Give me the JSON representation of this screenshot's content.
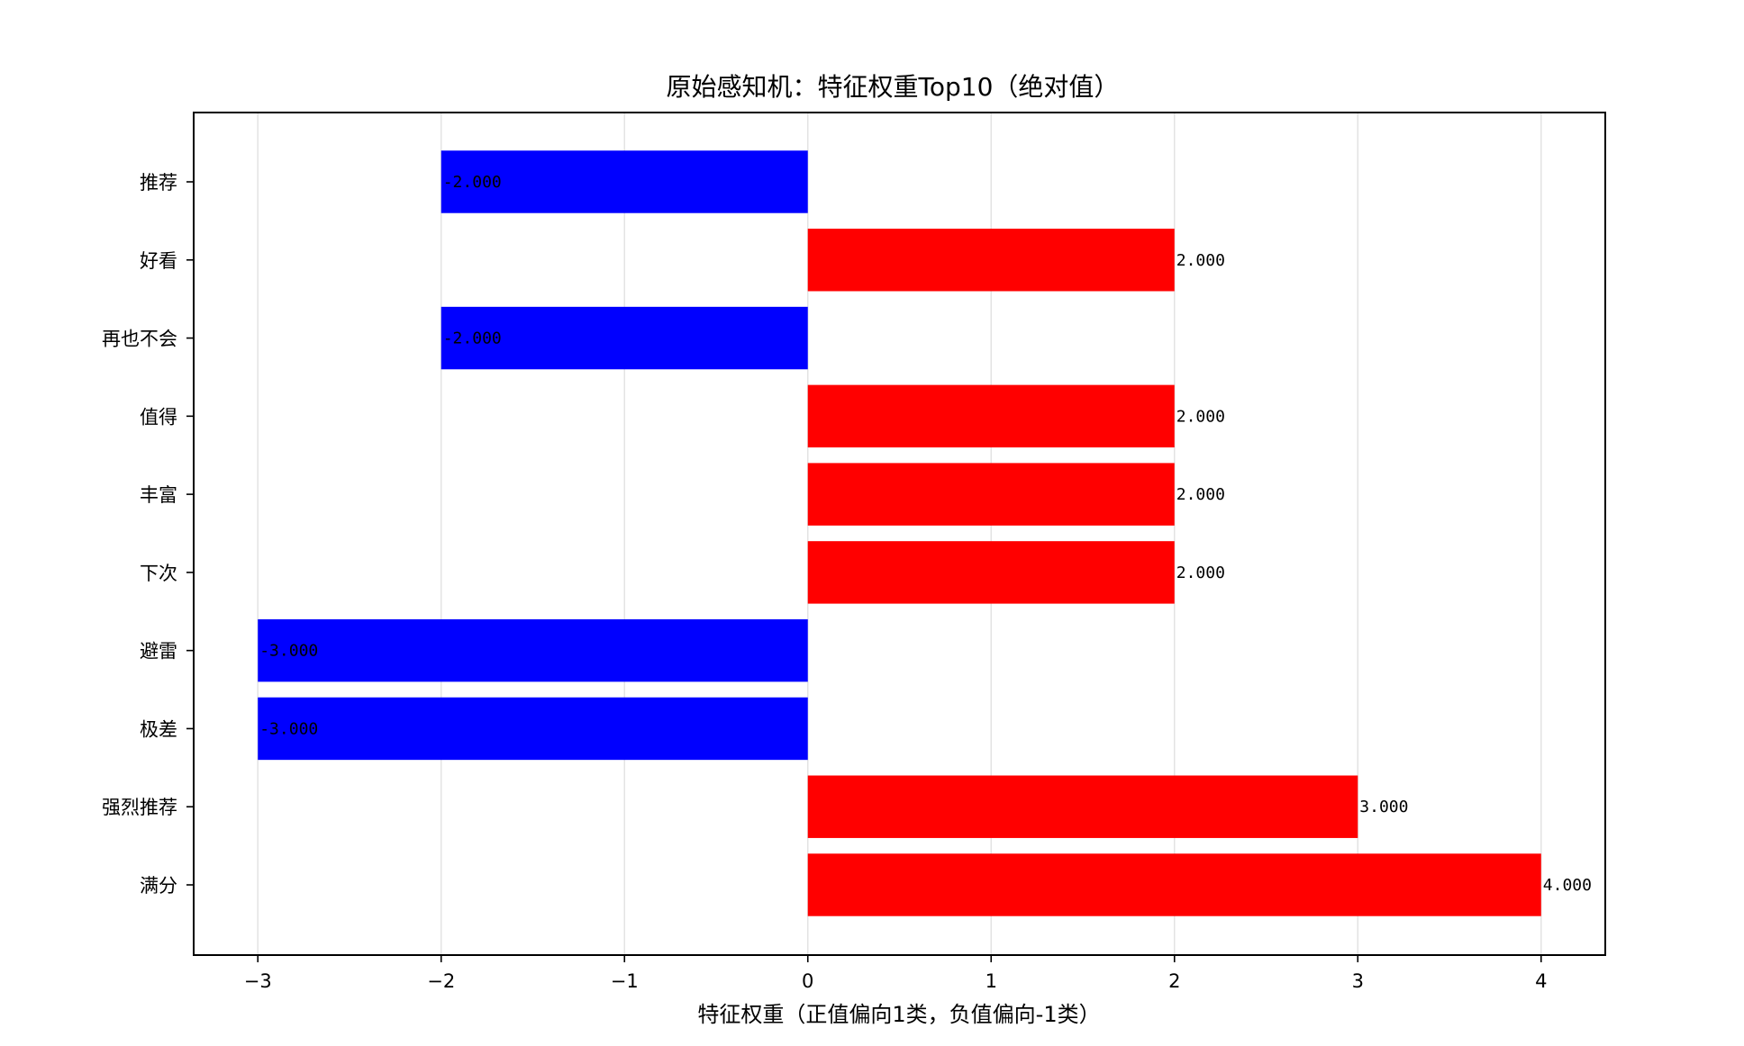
{
  "chart_data": {
    "type": "bar",
    "orientation": "horizontal",
    "title": "原始感知机：特征权重Top10（绝对值）",
    "xlabel": "特征权重（正值偏向1类，负值偏向-1类）",
    "ylabel": "",
    "xlim": [
      -3.35,
      4.35
    ],
    "xticks": [
      -3,
      -2,
      -1,
      0,
      1,
      2,
      3,
      4
    ],
    "grid": "x",
    "categories": [
      "推荐",
      "好看",
      "再也不会",
      "值得",
      "丰富",
      "下次",
      "避雷",
      "极差",
      "强烈推荐",
      "满分"
    ],
    "values": [
      -2,
      2,
      -2,
      2,
      2,
      2,
      -3,
      -3,
      3,
      4
    ],
    "value_labels": [
      "-2.000",
      "2.000",
      "-2.000",
      "2.000",
      "2.000",
      "2.000",
      "-3.000",
      "-3.000",
      "3.000",
      "4.000"
    ],
    "colors": {
      "positive": "#ff0000",
      "negative": "#0000ff"
    }
  }
}
